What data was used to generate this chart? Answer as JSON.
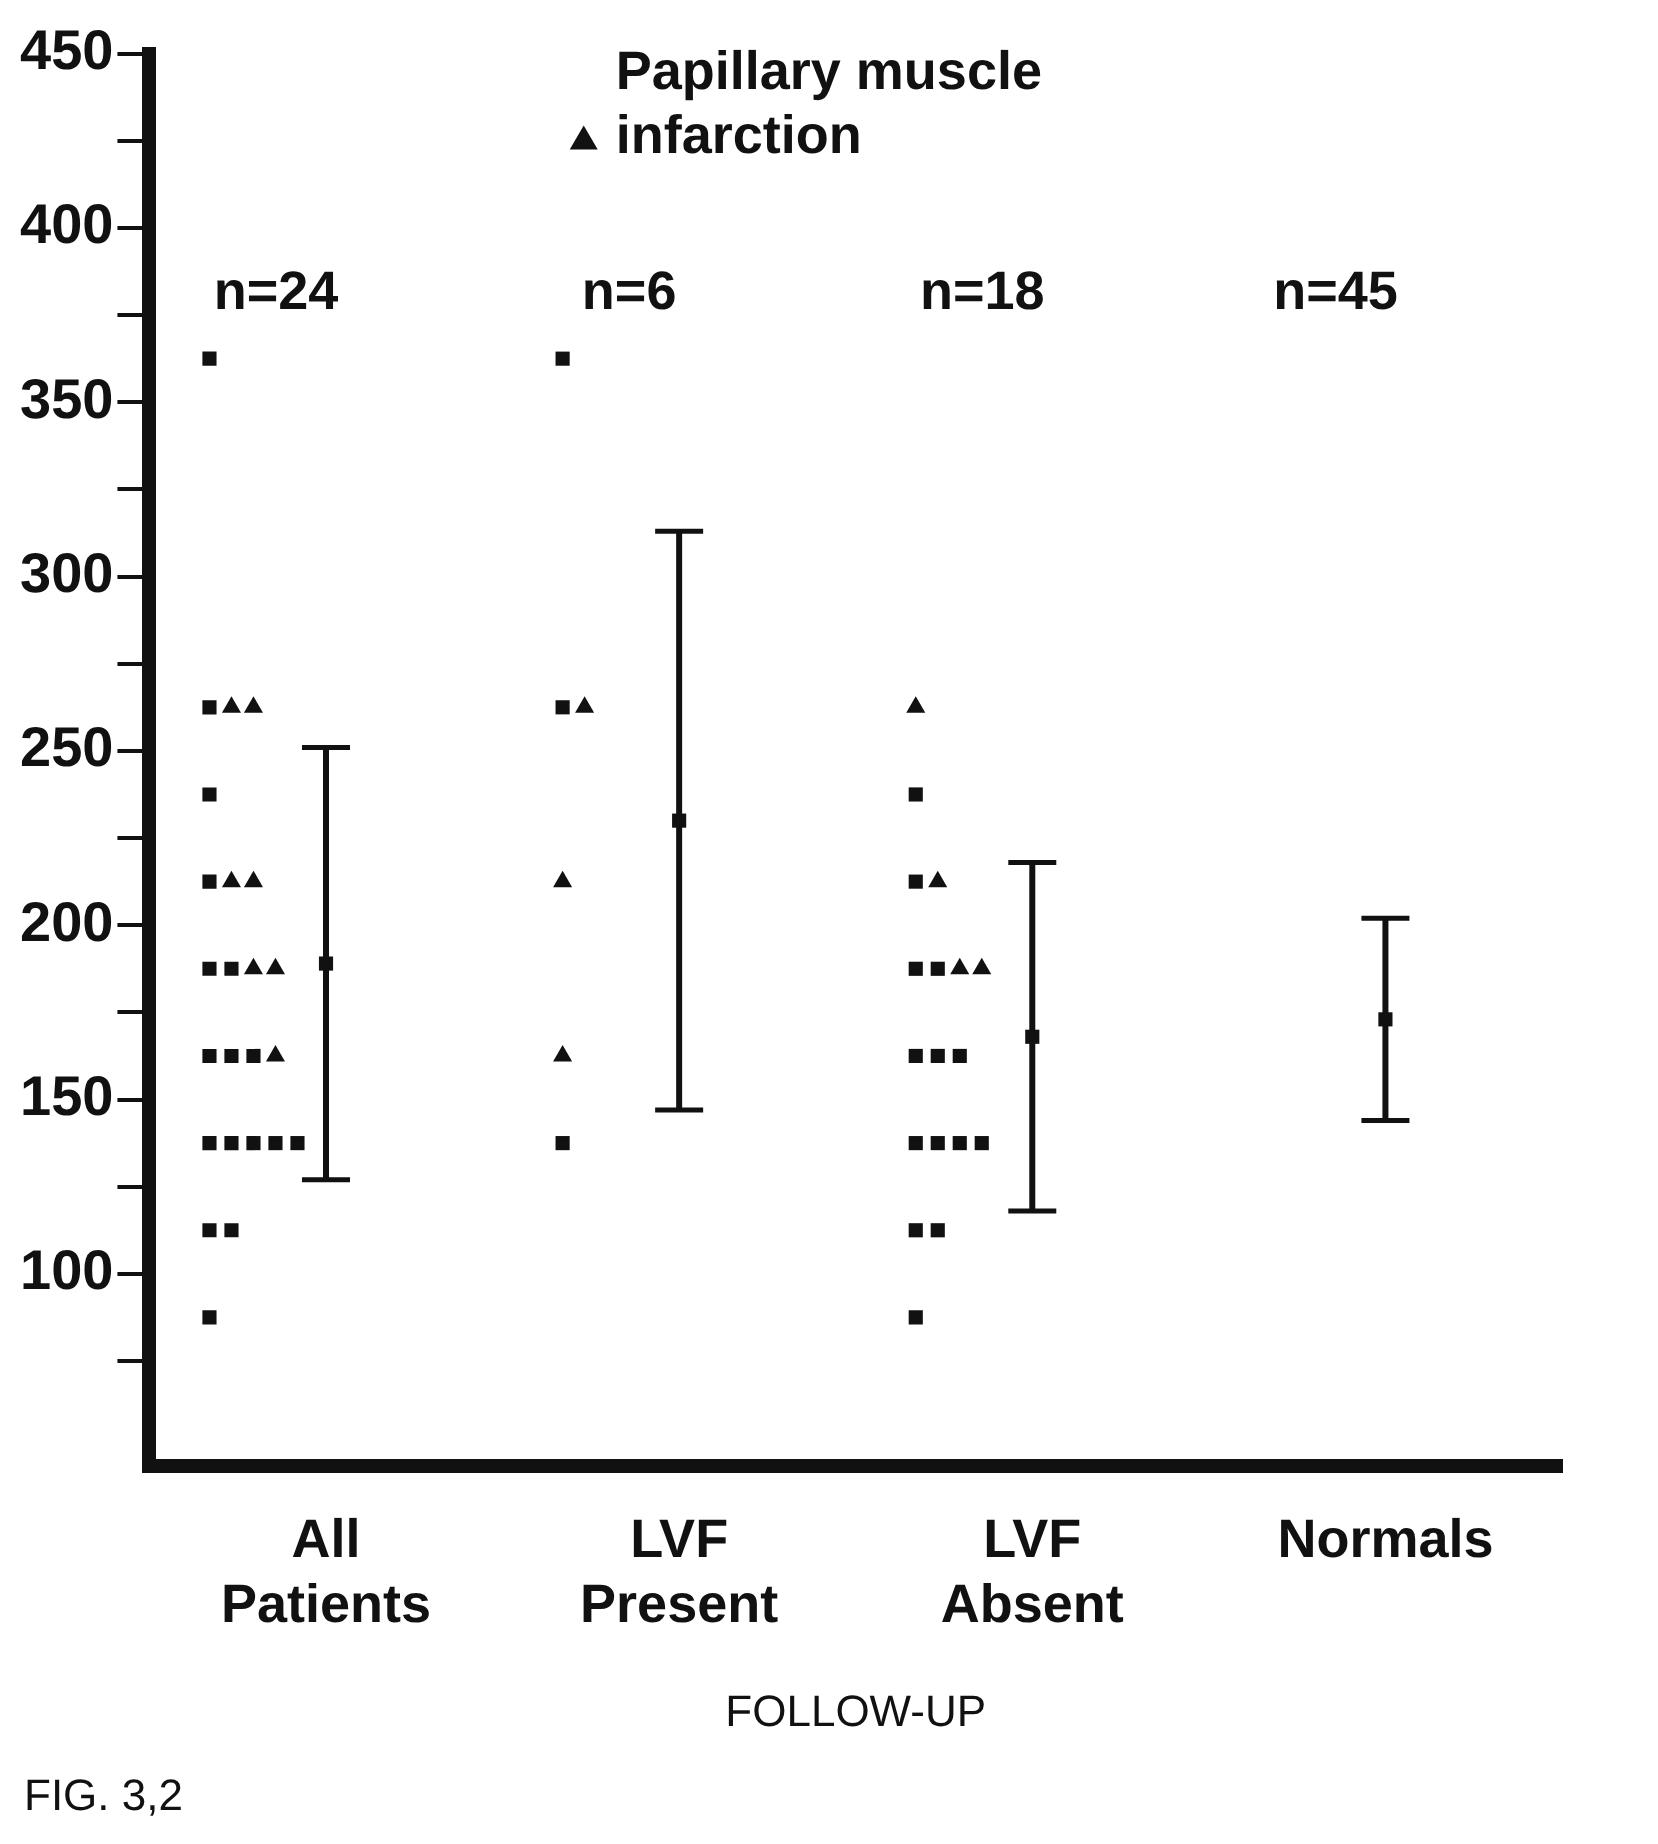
{
  "chart_data": {
    "type": "scatter",
    "categories": [
      "All Patients",
      "LVF Present",
      "LVF Absent",
      "Normals"
    ],
    "xlabel": "FOLLOW-UP",
    "ylim": [
      45,
      450
    ],
    "yticks": [
      {
        "value": 75,
        "label": null
      },
      100,
      {
        "value": 125,
        "label": null
      },
      150,
      {
        "value": 175,
        "label": null
      },
      200,
      {
        "value": 225,
        "label": null
      },
      250,
      {
        "value": 275,
        "label": null
      },
      300,
      {
        "value": 325,
        "label": null
      },
      350,
      {
        "value": 375,
        "label": null
      },
      400,
      {
        "value": 425,
        "label": null
      },
      450
    ],
    "grid": false,
    "legend": "top",
    "annotations": [
      "n=24",
      "n=6",
      "n=18",
      "n=45",
      "FIG. 3,2"
    ],
    "series": [
      {
        "marker": "square",
        "color": "#111111",
        "x": [
          "All Patients",
          "All Patients",
          "All Patients",
          "All Patients",
          "All Patients",
          "All Patients",
          "All Patients",
          "All Patients",
          "All Patients",
          "All Patients",
          "All Patients",
          "All Patients",
          "All Patients",
          "All Patients",
          "All Patients",
          "All Patients",
          "All Patients",
          "LVF Present",
          "LVF Present",
          "LVF Present",
          "LVF Absent",
          "LVF Absent",
          "LVF Absent",
          "LVF Absent",
          "LVF Absent",
          "LVF Absent",
          "LVF Absent",
          "LVF Absent",
          "LVF Absent",
          "LVF Absent",
          "LVF Absent",
          "LVF Absent",
          "LVF Absent",
          "LVF Absent"
        ],
        "values": [
          362.5,
          262.5,
          237.5,
          212.5,
          187.5,
          187.5,
          162.5,
          162.5,
          162.5,
          137.5,
          137.5,
          137.5,
          137.5,
          137.5,
          112.5,
          112.5,
          87.5,
          362.5,
          262.5,
          137.5,
          237.5,
          212.5,
          187.5,
          187.5,
          162.5,
          162.5,
          162.5,
          137.5,
          137.5,
          137.5,
          137.5,
          112.5,
          112.5,
          87.5
        ]
      },
      {
        "marker": "triangle",
        "name": "Papillary muscle infarction",
        "color": "#111111",
        "x": [
          "All Patients",
          "All Patients",
          "All Patients",
          "All Patients",
          "All Patients",
          "All Patients",
          "All Patients",
          "LVF Present",
          "LVF Present",
          "LVF Present",
          "LVF Absent",
          "LVF Absent",
          "LVF Absent",
          "LVF Absent"
        ],
        "values": [
          262.5,
          262.5,
          212.5,
          212.5,
          187.5,
          187.5,
          162.5,
          262.5,
          212.5,
          162.5,
          262.5,
          212.5,
          187.5,
          187.5
        ]
      },
      {
        "marker": "square",
        "color": "#111111",
        "x": [
          "All Patients",
          "LVF Present",
          "LVF Absent",
          "Normals"
        ],
        "values": [
          189,
          230,
          168,
          173
        ],
        "errors": [
          62,
          83,
          50,
          29
        ]
      }
    ]
  }
}
